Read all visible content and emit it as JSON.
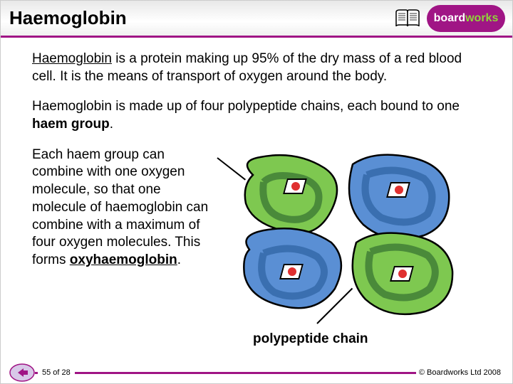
{
  "colors": {
    "accent": "#a01585",
    "title": "#000000",
    "blob_green": "#7ec850",
    "blob_blue": "#5a8fd4",
    "blob_dkgreen": "#4a8a3a",
    "haem_red": "#e03030",
    "logo_bg": "#a01585",
    "logo_works": "#8fd43a"
  },
  "header": {
    "title": "Haemoglobin",
    "logo_board": "board",
    "logo_works": "works"
  },
  "para1_lead": "Haemoglobin",
  "para1_rest": " is a protein making up 95% of the dry mass of a red blood cell. It is the means of transport of oxygen around the body.",
  "para2_a": "Haemoglobin is made up of four polypeptide chains, each bound to one ",
  "para2_b": "haem group",
  "para2_c": ".",
  "para3_a": "Each haem group can combine with one oxygen molecule, so that one molecule of haemoglobin can combine with a maximum of four oxygen molecules. This forms ",
  "para3_b": "oxyhaemoglobin",
  "para3_c": ".",
  "label_polypeptide": "polypeptide chain",
  "footer": {
    "page": "55 of 28",
    "copyright": "© Boardworks Ltd 2008"
  }
}
